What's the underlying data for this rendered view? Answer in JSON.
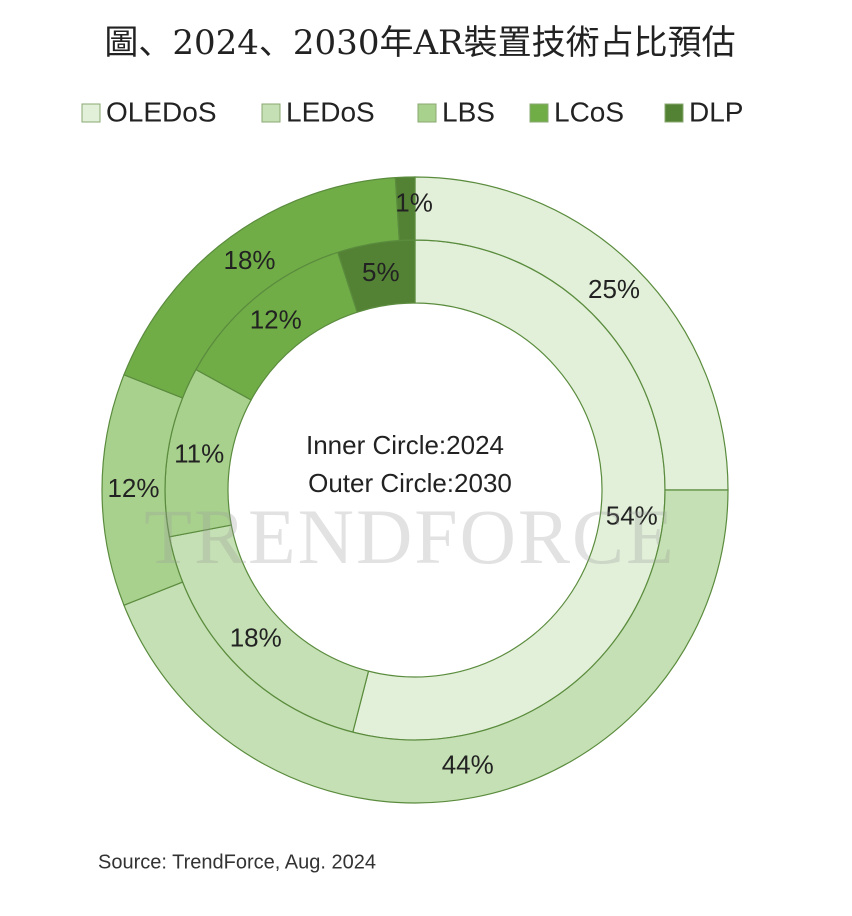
{
  "chart_data": {
    "type": "donut",
    "title": "圖、2024、2030年AR裝置技術占比預估",
    "categories": [
      "OLEDoS",
      "LEDoS",
      "LBS",
      "LCoS",
      "DLP"
    ],
    "colors": [
      "#e2f0d9",
      "#c5e0b4",
      "#a9d18e",
      "#70ad47",
      "#548235"
    ],
    "series": [
      {
        "values": [
          54,
          18,
          11,
          12,
          5
        ],
        "value_labels": [
          "54%",
          "18%",
          "11%",
          "12%",
          "5%"
        ]
      },
      {
        "values": [
          25,
          44,
          12,
          18,
          1
        ],
        "value_labels": [
          "25%",
          "44%",
          "12%",
          "18%",
          "1%"
        ]
      }
    ],
    "annotations": [
      "Inner Circle:2024",
      "Outer Circle:2030"
    ],
    "watermark": "TRENDFORCE",
    "source": "Source: TrendForce, Aug. 2024"
  }
}
